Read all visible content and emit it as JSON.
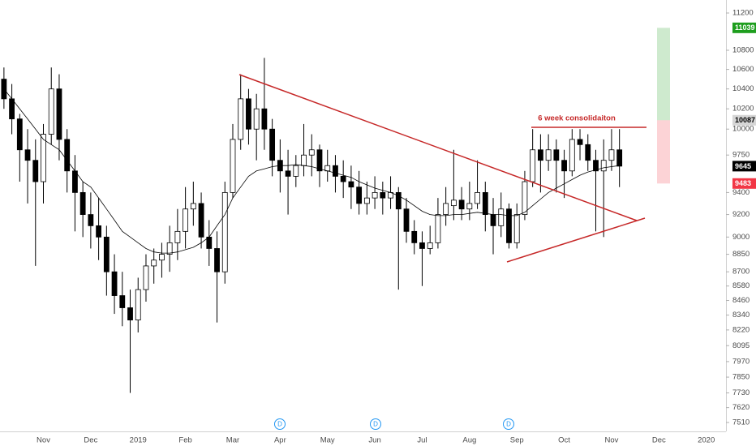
{
  "chart_data": {
    "type": "candlestick",
    "log_scale": true,
    "annotation": "6 week consolidaiton",
    "categories": [
      null,
      null,
      null,
      null,
      null,
      "Nov",
      null,
      null,
      null,
      null,
      null,
      "Dec",
      null,
      null,
      null,
      null,
      null,
      "2019",
      null,
      null,
      null,
      null,
      null,
      "Feb",
      null,
      null,
      null,
      null,
      null,
      "Mar",
      null,
      null,
      null,
      null,
      null,
      "Apr",
      null,
      null,
      null,
      null,
      null,
      "May",
      null,
      null,
      null,
      null,
      null,
      "Jun",
      null,
      null,
      null,
      null,
      null,
      "Jul",
      null,
      null,
      null,
      null,
      null,
      "Aug",
      null,
      null,
      null,
      null,
      null,
      "Sep",
      null,
      null,
      null,
      null,
      null,
      "Oct",
      null,
      null,
      null,
      null,
      null,
      "Nov",
      null,
      null,
      null,
      null,
      null,
      "Dec",
      null,
      null,
      null,
      null,
      null,
      "2020",
      null,
      null
    ],
    "open": [
      10500,
      10300,
      10100,
      9800,
      9700,
      9500,
      9950,
      10400,
      9900,
      9600,
      9400,
      9200,
      9100,
      9000,
      8700,
      8500,
      8400,
      8300,
      8550,
      8750,
      8800,
      8850,
      8950,
      9050,
      9250,
      9300,
      9000,
      8900,
      8700,
      9400,
      9900,
      10300,
      10000,
      10200,
      10000,
      9700,
      9600,
      9550,
      9650,
      9750,
      9800,
      9600,
      9650,
      9550,
      9500,
      9450,
      9300,
      9350,
      9400,
      9350,
      9400,
      9250,
      9050,
      8950,
      8900,
      8950,
      9200,
      9280,
      9330,
      9250,
      9300,
      9400,
      9200,
      9100,
      9250,
      8950,
      9200,
      9500,
      9800,
      9700,
      9800,
      9700,
      9600,
      9900,
      9850,
      9700,
      9600,
      9700,
      9800,
      null,
      null,
      null,
      null,
      null,
      null,
      null,
      null,
      null,
      null,
      null,
      null,
      null
    ],
    "high": [
      10620,
      10450,
      10150,
      10000,
      9900,
      10050,
      10620,
      10550,
      10000,
      9750,
      9500,
      9400,
      9350,
      9100,
      8850,
      8700,
      8550,
      8650,
      8850,
      8900,
      8950,
      9100,
      9250,
      9450,
      9500,
      9400,
      9150,
      9050,
      9500,
      10050,
      10550,
      10400,
      10350,
      10720,
      10100,
      9900,
      9800,
      9750,
      10050,
      9950,
      9850,
      9800,
      9750,
      9700,
      9650,
      9600,
      9500,
      9550,
      9500,
      9550,
      9450,
      9350,
      9150,
      9050,
      9100,
      9350,
      9450,
      9800,
      9450,
      9500,
      9700,
      9500,
      9350,
      9400,
      9300,
      9300,
      9600,
      10000,
      9950,
      9950,
      9900,
      9800,
      10000,
      10000,
      9950,
      9800,
      9900,
      10000,
      10000,
      null,
      null,
      null,
      null,
      null,
      null,
      null,
      null,
      null,
      null,
      null,
      null,
      null
    ],
    "low": [
      10200,
      9950,
      9500,
      9300,
      8750,
      9300,
      9850,
      9700,
      9400,
      9050,
      9000,
      8900,
      8800,
      8500,
      8350,
      8250,
      7730,
      8200,
      8450,
      8600,
      8650,
      8700,
      8800,
      8900,
      9100,
      8900,
      8750,
      8280,
      8600,
      9350,
      9800,
      9850,
      9700,
      9800,
      9550,
      9400,
      9200,
      9450,
      9550,
      9550,
      9450,
      9500,
      9400,
      9350,
      9250,
      9200,
      9200,
      9250,
      9200,
      9250,
      8550,
      8950,
      8850,
      8580,
      8850,
      8900,
      9100,
      9150,
      9150,
      9150,
      9250,
      9050,
      8850,
      9000,
      8900,
      8900,
      9150,
      9450,
      9400,
      9600,
      9400,
      9350,
      9550,
      9700,
      9600,
      9050,
      9000,
      9600,
      9450,
      null,
      null,
      null,
      null,
      null,
      null,
      null,
      null,
      null,
      null,
      null,
      null,
      null
    ],
    "close": [
      10300,
      10100,
      9800,
      9700,
      9500,
      9950,
      10400,
      9900,
      9600,
      9400,
      9200,
      9100,
      9000,
      8700,
      8500,
      8400,
      8300,
      8550,
      8750,
      8800,
      8850,
      8950,
      9050,
      9250,
      9300,
      9000,
      8900,
      8700,
      9400,
      9900,
      10300,
      10000,
      10200,
      10000,
      9700,
      9600,
      9550,
      9650,
      9750,
      9800,
      9600,
      9650,
      9550,
      9500,
      9450,
      9300,
      9350,
      9400,
      9350,
      9400,
      9250,
      9050,
      8950,
      8900,
      8950,
      9200,
      9300,
      9330,
      9250,
      9300,
      9400,
      9200,
      9100,
      9250,
      8950,
      9200,
      9500,
      9800,
      9700,
      9800,
      9700,
      9600,
      9900,
      9850,
      9700,
      9600,
      9700,
      9800,
      9645,
      null,
      null,
      null,
      null,
      null,
      null,
      null,
      null,
      null,
      null,
      null,
      null,
      null
    ],
    "ma_values": [
      10400,
      10300,
      10200,
      10100,
      10000,
      9900,
      9850,
      9800,
      9700,
      9600,
      9500,
      9450,
      9350,
      9250,
      9150,
      9050,
      9000,
      8950,
      8900,
      8870,
      8860,
      8860,
      8870,
      8890,
      8910,
      8950,
      9000,
      9100,
      9200,
      9350,
      9450,
      9550,
      9600,
      9620,
      9640,
      9650,
      9650,
      9660,
      9650,
      9640,
      9620,
      9600,
      9580,
      9560,
      9540,
      9500,
      9470,
      9440,
      9420,
      9400,
      9370,
      9330,
      9280,
      9230,
      9200,
      9190,
      9190,
      9200,
      9200,
      9210,
      9220,
      9210,
      9200,
      9200,
      9190,
      9190,
      9220,
      9280,
      9340,
      9400,
      9440,
      9480,
      9520,
      9560,
      9590,
      9610,
      9630,
      9640,
      9650,
      null,
      null,
      null,
      null,
      null,
      null,
      null,
      null,
      null,
      null,
      null,
      null,
      null
    ],
    "up_color": "#ffffff",
    "down_color": "#000000",
    "ma_color": "#000000",
    "ylim": [
      7445,
      11343
    ],
    "yticks": [
      7510,
      7620,
      7730,
      7850,
      7970,
      8095,
      8220,
      8340,
      8460,
      8580,
      8700,
      8850,
      9000,
      9200,
      9400,
      9750,
      10000,
      10200,
      10400,
      10600,
      10800,
      11200
    ],
    "price_labels": [
      {
        "value": 11039,
        "color": "#1e9e1e"
      },
      {
        "value": 10087,
        "color": "#d6d6d6"
      },
      {
        "value": 9645,
        "color": "#000000"
      },
      {
        "value": 9483,
        "color": "#f23645"
      }
    ]
  }
}
